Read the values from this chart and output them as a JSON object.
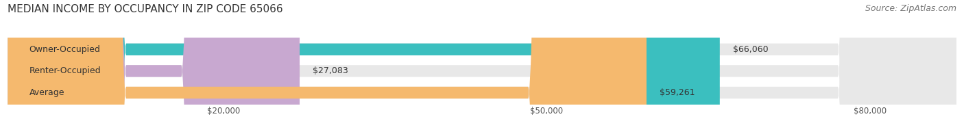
{
  "title": "MEDIAN INCOME BY OCCUPANCY IN ZIP CODE 65066",
  "source": "Source: ZipAtlas.com",
  "categories": [
    "Owner-Occupied",
    "Renter-Occupied",
    "Average"
  ],
  "values": [
    66060,
    27083,
    59261
  ],
  "bar_colors": [
    "#3bbfbf",
    "#c8a8d0",
    "#f5b96e"
  ],
  "bar_bg_color": "#e8e8e8",
  "value_labels": [
    "$66,060",
    "$27,083",
    "$59,261"
  ],
  "x_ticks": [
    20000,
    50000,
    80000
  ],
  "x_tick_labels": [
    "$20,000",
    "$50,000",
    "$80,000"
  ],
  "xmin": 0,
  "xmax": 88000,
  "background_color": "#ffffff",
  "title_fontsize": 11,
  "source_fontsize": 9,
  "label_fontsize": 9,
  "tick_fontsize": 8.5
}
